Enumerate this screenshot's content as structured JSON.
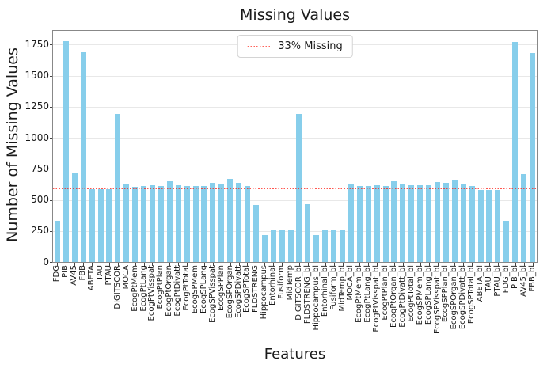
{
  "chart_data": {
    "type": "bar",
    "title": "Missing Values",
    "xlabel": "Features",
    "ylabel": "Number of Missing Values",
    "categories": [
      "FDG",
      "PIB",
      "AV45",
      "FBB",
      "ABETA",
      "TAU",
      "PTAU",
      "DIGITSCOR",
      "MOCA",
      "EcogPtMem",
      "EcogPtLang",
      "EcogPtVisspat",
      "EcogPtPlan",
      "EcogPtOrgan",
      "EcogPtDivatt",
      "EcogPtTotal",
      "EcogSPMem",
      "EcogSPLang",
      "EcogSPVisspat",
      "EcogSPPlan",
      "EcogSPOrgan",
      "EcogSPDivatt",
      "EcogSPTotal",
      "FLDSTRENG",
      "Hippocampus",
      "Entorhinal",
      "Fusiform",
      "MidTemp",
      "DIGITSCOR_bl",
      "FLDSTRENG_bl",
      "Hippocampus_bl",
      "Entorhinal_bl",
      "Fusiform_bl",
      "MidTemp_bl",
      "MOCA_bl",
      "EcogPtMem_bl",
      "EcogPtLang_bl",
      "EcogPtVisspat_bl",
      "EcogPtPlan_bl",
      "EcogPtOrgan_bl",
      "EcogPtDivatt_bl",
      "EcogPtTotal_bl",
      "EcogSPMem_bl",
      "EcogSPLang_bl",
      "EcogSPVisspat_bl",
      "EcogSPPlan_bl",
      "EcogSPOrgan_bl",
      "EcogSPDivatt_bl",
      "EcogSPTotal_bl",
      "ABETA_bl",
      "TAU_bl",
      "PTAU_bl",
      "FDG_bl",
      "PIB_bl",
      "AV45_bl",
      "FBB_bl"
    ],
    "values": [
      330,
      1776,
      715,
      1690,
      588,
      586,
      586,
      1190,
      625,
      607,
      610,
      615,
      610,
      649,
      621,
      610,
      613,
      610,
      640,
      625,
      668,
      634,
      613,
      460,
      219,
      256,
      256,
      256,
      1190,
      464,
      219,
      256,
      256,
      256,
      622,
      614,
      610,
      615,
      611,
      650,
      629,
      619,
      619,
      617,
      645,
      634,
      664,
      632,
      611,
      582,
      582,
      582,
      334,
      1770,
      710,
      1680
    ],
    "yticks": [
      0,
      250,
      500,
      750,
      1000,
      1250,
      1500,
      1750
    ],
    "ytick_labels": [
      "0",
      "250",
      "500",
      "750",
      "1000",
      "1250",
      "1500",
      "1750"
    ],
    "ylim": [
      0,
      1860
    ],
    "grid": "horizontal",
    "legend": {
      "position": "upper-center",
      "entries": [
        {
          "label": "33% Missing",
          "marker": "dotted-red-line"
        }
      ]
    },
    "reference_line": {
      "value": 592,
      "style": "dotted",
      "color": "#FF0000",
      "label": "33% Missing"
    },
    "colors": {
      "bar": "#87CEEB",
      "reference": "#FF0000",
      "grid": "#E8E8E8",
      "spine": "#888888",
      "text": "#1A1A1A"
    }
  }
}
